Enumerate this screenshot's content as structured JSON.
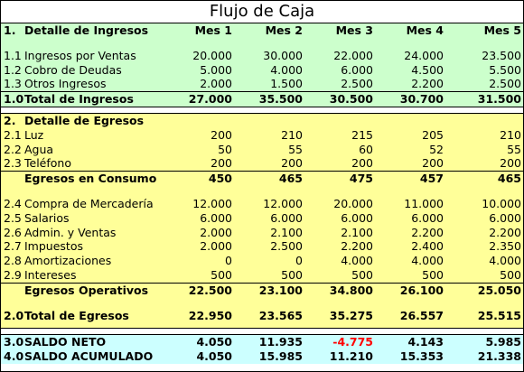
{
  "title": "Flujo de Caja",
  "header": {
    "num": "1.",
    "label": "Detalle de Ingresos",
    "months": [
      "Mes 1",
      "Mes 2",
      "Mes 3",
      "Mes 4",
      "Mes 5"
    ]
  },
  "ingresos": [
    {
      "num": "1.1",
      "label": "Ingresos por Ventas",
      "values": [
        "20.000",
        "30.000",
        "22.000",
        "24.000",
        "23.500"
      ]
    },
    {
      "num": "1.2",
      "label": "Cobro de Deudas",
      "values": [
        "5.000",
        "4.000",
        "6.000",
        "4.500",
        "5.500"
      ]
    },
    {
      "num": "1.3",
      "label": "Otros Ingresos",
      "values": [
        "2.000",
        "1.500",
        "2.500",
        "2.200",
        "2.500"
      ]
    }
  ],
  "total_ingresos": {
    "num": "1.0",
    "label": "Total de Ingresos",
    "values": [
      "27.000",
      "35.500",
      "30.500",
      "30.700",
      "31.500"
    ]
  },
  "egresos_header": {
    "num": "2.",
    "label": "Detalle de Egresos"
  },
  "consumo": [
    {
      "num": "2.1",
      "label": "Luz",
      "values": [
        "200",
        "210",
        "215",
        "205",
        "210"
      ]
    },
    {
      "num": "2.2",
      "label": "Agua",
      "values": [
        "50",
        "55",
        "60",
        "52",
        "55"
      ]
    },
    {
      "num": "2.3",
      "label": "Teléfono",
      "values": [
        "200",
        "200",
        "200",
        "200",
        "200"
      ]
    }
  ],
  "total_consumo": {
    "num": "",
    "label": "Egresos en Consumo",
    "values": [
      "450",
      "465",
      "475",
      "457",
      "465"
    ]
  },
  "operativos": [
    {
      "num": "2.4",
      "label": "Compra de Mercadería",
      "values": [
        "12.000",
        "12.000",
        "20.000",
        "11.000",
        "10.000"
      ]
    },
    {
      "num": "2.5",
      "label": "Salarios",
      "values": [
        "6.000",
        "6.000",
        "6.000",
        "6.000",
        "6.000"
      ]
    },
    {
      "num": "2.6",
      "label": "Admin. y Ventas",
      "values": [
        "2.000",
        "2.100",
        "2.100",
        "2.200",
        "2.200"
      ]
    },
    {
      "num": "2.7",
      "label": "Impuestos",
      "values": [
        "2.000",
        "2.500",
        "2.200",
        "2.400",
        "2.350"
      ]
    },
    {
      "num": "2.8",
      "label": "Amortizaciones",
      "values": [
        "0",
        "0",
        "4.000",
        "4.000",
        "4.000"
      ]
    },
    {
      "num": "2.9",
      "label": "Intereses",
      "values": [
        "500",
        "500",
        "500",
        "500",
        "500"
      ]
    }
  ],
  "total_operativos": {
    "num": "",
    "label": "Egresos Operativos",
    "values": [
      "22.500",
      "23.100",
      "34.800",
      "26.100",
      "25.050"
    ]
  },
  "total_egresos": {
    "num": "2.0",
    "label": "Total de Egresos",
    "values": [
      "22.950",
      "23.565",
      "35.275",
      "26.557",
      "25.515"
    ]
  },
  "saldo_neto": {
    "num": "3.0",
    "label": "SALDO NETO",
    "values": [
      "4.050",
      "11.935",
      "-4.775",
      "4.143",
      "5.985"
    ]
  },
  "saldo_acumulado": {
    "num": "4.0",
    "label": "SALDO ACUMULADO",
    "values": [
      "4.050",
      "15.985",
      "11.210",
      "15.353",
      "21.338"
    ]
  },
  "colors": {
    "ingresos_band": "#ccffcc",
    "egresos_band": "#ffff99",
    "saldo_band": "#ccffff",
    "negative": "#ff0000"
  }
}
